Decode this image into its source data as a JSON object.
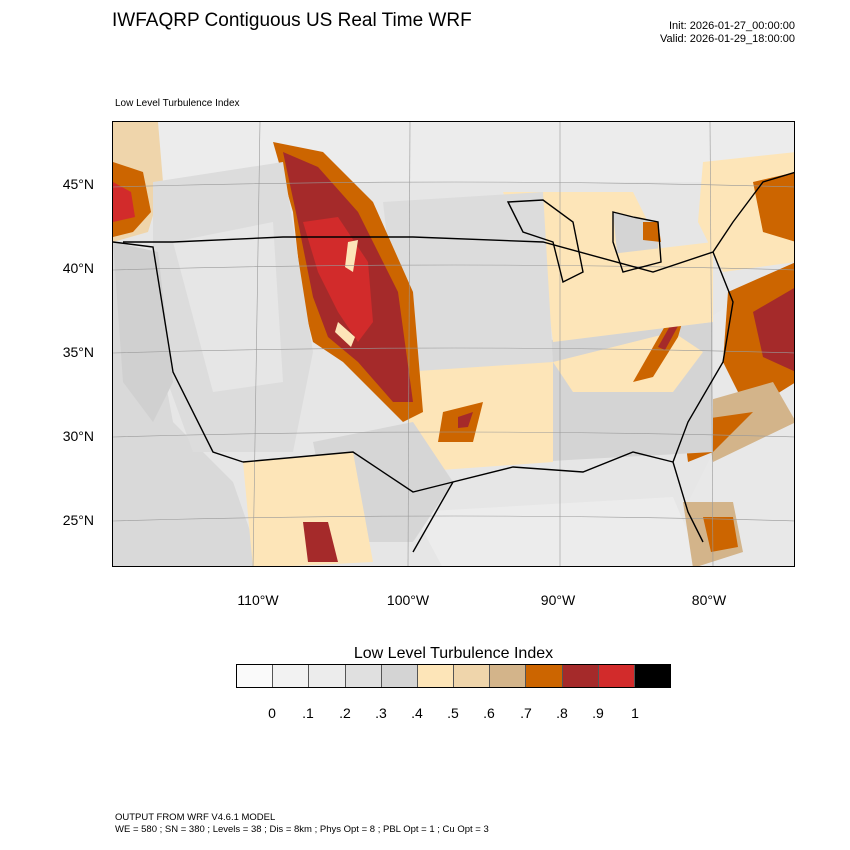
{
  "header": {
    "title": "IWFAQRP Contiguous US Real Time WRF",
    "init": "Init: 2026-01-27_00:00:00",
    "valid": "Valid: 2026-01-29_18:00:00",
    "subtitle": "Low Level Turbulence Index"
  },
  "map": {
    "lat_labels": [
      "45°N",
      "40°N",
      "35°N",
      "30°N",
      "25°N"
    ],
    "lon_labels": [
      "110°W",
      "100°W",
      "90°W",
      "80°W"
    ]
  },
  "colorbar": {
    "title": "Low Level Turbulence Index",
    "tick_labels": [
      "0",
      ".1",
      ".2",
      ".3",
      ".4",
      ".5",
      ".6",
      ".7",
      ".8",
      ".9",
      "1"
    ],
    "colors": [
      "#fafafa",
      "#f2f2f2",
      "#ececec",
      "#e0e0e0",
      "#d4d4d4",
      "#fde5b8",
      "#efd5ab",
      "#d3b48a",
      "#cc6500",
      "#a52a2a",
      "#d22b2b",
      "#000000"
    ]
  },
  "footer": {
    "line1": "OUTPUT FROM WRF V4.6.1 MODEL",
    "line2": "WE = 580 ; SN = 380 ; Levels = 38 ; Dis = 8km ; Phys Opt = 8 ; PBL Opt = 1 ; Cu Opt = 3"
  }
}
